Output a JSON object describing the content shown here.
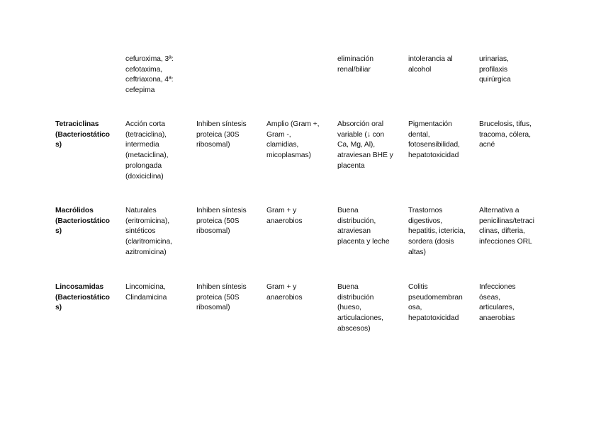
{
  "table": {
    "rows": [
      {
        "cells": [
          "",
          "cefuroxima, 3ª:\ncefotaxima,\nceftriaxona, 4ª:\ncefepima",
          "",
          "",
          "eliminación\nrenal/biliar",
          "intolerancia al\nalcohol",
          "urinarias,\nprofilaxis\nquirúrgica"
        ]
      },
      {
        "cells": [
          "Tetraciclinas\n(Bacteriostático\ns)",
          "Acción corta\n(tetraciclina),\nintermedia\n(metaciclina),\nprolongada\n(doxiciclina)",
          "Inhiben síntesis\nproteica (30S\nribosomal)",
          "Amplio (Gram +,\nGram -,\nclamidias,\nmicoplasmas)",
          "Absorción oral\nvariable (↓ con\nCa, Mg, Al),\natraviesan BHE y\nplacenta",
          "Pigmentación\ndental,\nfotosensibilidad,\nhepatotoxicidad",
          "Brucelosis, tifus,\ntracoma, cólera,\nacné"
        ]
      },
      {
        "cells": [
          "Macrólidos\n(Bacteriostático\ns)",
          "Naturales\n(eritromicina),\nsintéticos\n(claritromicina,\nazitromicina)",
          "Inhiben síntesis\nproteica (50S\nribosomal)",
          "Gram + y\nanaerobios",
          "Buena\ndistribución,\natraviesan\nplacenta y leche",
          "Trastornos\ndigestivos,\nhepatitis, ictericia,\nsordera (dosis\naltas)",
          "Alternativa a\npenicilinas/tetraci\nclinas, difteria,\ninfecciones ORL"
        ]
      },
      {
        "cells": [
          "Lincosamidas\n(Bacteriostático\ns)",
          "Lincomicina,\nClindamicina",
          "Inhiben síntesis\nproteica (50S\nribosomal)",
          "Gram + y\nanaerobios",
          "Buena\ndistribución\n(hueso,\narticulaciones,\nabscesos)",
          "Colitis\npseudomembran\nosa,\nhepatotoxicidad",
          "Infecciones\nóseas,\narticulares,\nanaerobias"
        ]
      }
    ]
  }
}
